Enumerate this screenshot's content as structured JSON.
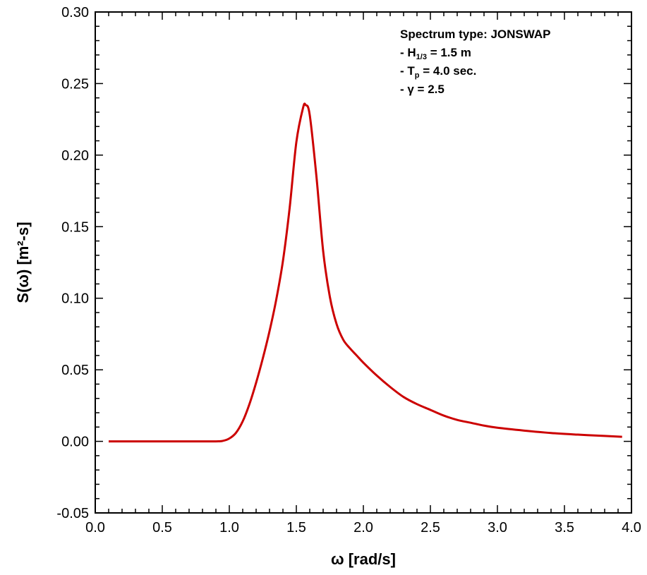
{
  "chart_data": {
    "type": "line",
    "title": "",
    "xlabel": "ω [rad/s]",
    "ylabel": "S(ω) [m²-s]",
    "xlim": [
      0.0,
      4.0
    ],
    "ylim": [
      -0.05,
      0.3
    ],
    "xticks": [
      "0.0",
      "0.5",
      "1.0",
      "1.5",
      "2.0",
      "2.5",
      "3.0",
      "3.5",
      "4.0"
    ],
    "yticks": [
      "-0.05",
      "0.00",
      "0.05",
      "0.10",
      "0.15",
      "0.20",
      "0.25",
      "0.30"
    ],
    "grid": false,
    "line_color": "#cc0000",
    "annotations": {
      "line1": "Spectrum type: JONSWAP",
      "line2_prefix": "- H",
      "line2_sub": "1/3",
      "line2_suffix": " = 1.5 m",
      "line3_prefix": "- T",
      "line3_sub": "p",
      "line3_suffix": " = 4.0 sec.",
      "line4": "- γ = 2.5"
    },
    "series": [
      {
        "x": [
          0.1,
          0.3,
          0.5,
          0.7,
          0.9,
          0.95,
          1.0,
          1.05,
          1.1,
          1.15,
          1.2,
          1.25,
          1.3,
          1.35,
          1.4,
          1.45,
          1.5,
          1.55,
          1.57,
          1.6,
          1.65,
          1.7,
          1.75,
          1.8,
          1.85,
          1.9,
          1.95,
          2.0,
          2.1,
          2.2,
          2.3,
          2.4,
          2.5,
          2.6,
          2.7,
          2.8,
          2.9,
          3.0,
          3.2,
          3.4,
          3.6,
          3.8,
          3.93
        ],
        "y": [
          0.0,
          0.0,
          0.0,
          0.0,
          0.0,
          0.0003,
          0.002,
          0.006,
          0.014,
          0.026,
          0.041,
          0.058,
          0.077,
          0.099,
          0.126,
          0.163,
          0.209,
          0.233,
          0.235,
          0.228,
          0.185,
          0.133,
          0.101,
          0.082,
          0.071,
          0.065,
          0.06,
          0.055,
          0.046,
          0.038,
          0.031,
          0.026,
          0.022,
          0.018,
          0.015,
          0.013,
          0.011,
          0.0095,
          0.0075,
          0.0058,
          0.0047,
          0.0038,
          0.0032
        ]
      }
    ]
  }
}
